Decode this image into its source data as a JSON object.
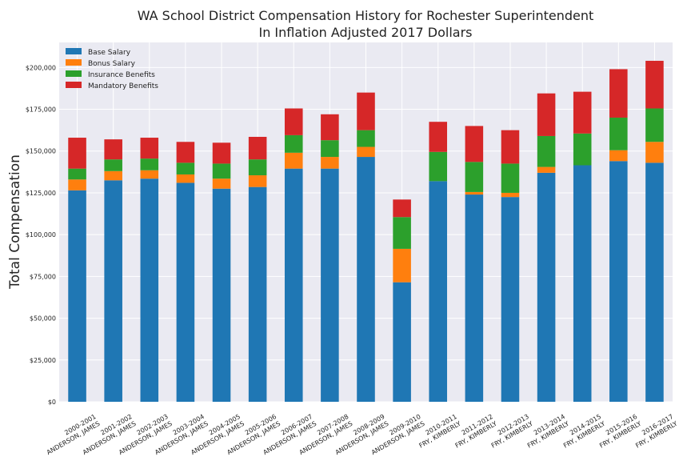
{
  "chart_data": {
    "type": "bar",
    "stacked": true,
    "title": "WA School District Compensation History for Rochester Superintendent",
    "subtitle": "In Inflation Adjusted 2017 Dollars",
    "xlabel": "",
    "ylabel": "Total Compensation",
    "ylim": [
      0,
      215000
    ],
    "yticks": [
      0,
      25000,
      50000,
      75000,
      100000,
      125000,
      150000,
      175000,
      200000
    ],
    "ytick_labels": [
      "$0",
      "$25,000",
      "$50,000",
      "$75,000",
      "$100,000",
      "$125,000",
      "$150,000",
      "$175,000",
      "$200,000"
    ],
    "grid": true,
    "legend_position": "top-left",
    "categories": [
      [
        "2000-2001",
        "ANDERSON, JAMES"
      ],
      [
        "2001-2002",
        "ANDERSON, JAMES"
      ],
      [
        "2002-2003",
        "ANDERSON, JAMES"
      ],
      [
        "2003-2004",
        "ANDERSON, JAMES"
      ],
      [
        "2004-2005",
        "ANDERSON, JAMES"
      ],
      [
        "2005-2006",
        "ANDERSON, JAMES"
      ],
      [
        "2006-2007",
        "ANDERSON, JAMES"
      ],
      [
        "2007-2008",
        "ANDERSON, JAMES"
      ],
      [
        "2008-2009",
        "ANDERSON, JAMES"
      ],
      [
        "2009-2010",
        "ANDERSON, JAMES"
      ],
      [
        "2010-2011",
        "FRY, KIMBERLY"
      ],
      [
        "2011-2012",
        "FRY, KIMBERLY"
      ],
      [
        "2012-2013",
        "FRY, KIMBERLY"
      ],
      [
        "2013-2014",
        "FRY, KIMBERLY"
      ],
      [
        "2014-2015",
        "FRY, KIMBERLY"
      ],
      [
        "2015-2016",
        "FRY, KIMBERLY"
      ],
      [
        "2016-2017",
        "FRY, KIMBERLY"
      ]
    ],
    "series": [
      {
        "name": "Base Salary",
        "color": "#1f77b4",
        "values": [
          126500,
          132500,
          133500,
          131000,
          127500,
          128500,
          139500,
          139500,
          146500,
          71500,
          132000,
          124000,
          122500,
          137000,
          141500,
          144000,
          143000
        ]
      },
      {
        "name": "Bonus Salary",
        "color": "#ff7f0e",
        "values": [
          6500,
          5500,
          5000,
          5000,
          6000,
          7000,
          9500,
          7000,
          6000,
          20000,
          0,
          1500,
          2500,
          3500,
          0,
          6500,
          12500
        ]
      },
      {
        "name": "Insurance Benefits",
        "color": "#2ca02c",
        "values": [
          6500,
          7000,
          7000,
          7000,
          9000,
          9500,
          10500,
          10000,
          10000,
          19000,
          17500,
          18000,
          17500,
          18500,
          19000,
          19500,
          20000
        ]
      },
      {
        "name": "Mandatory Benefits",
        "color": "#d62728",
        "values": [
          18500,
          12000,
          12500,
          12500,
          12500,
          13500,
          16000,
          15500,
          22500,
          10500,
          18000,
          21500,
          20000,
          25500,
          25000,
          29000,
          28500
        ]
      }
    ]
  }
}
